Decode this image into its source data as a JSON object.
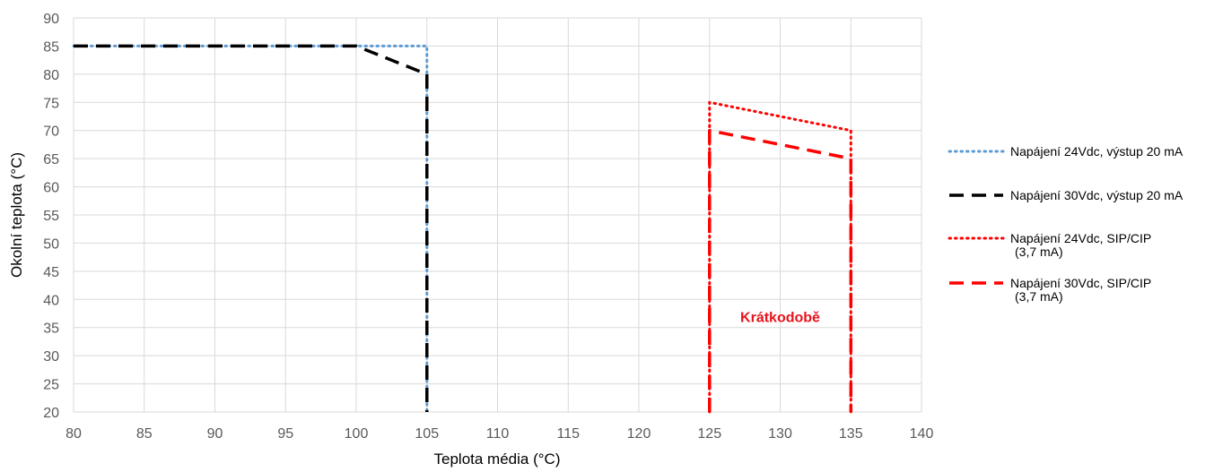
{
  "chart_data": {
    "type": "line",
    "title": "",
    "xlabel": "Teplota média (°C)",
    "ylabel": "Okolní teplota (°C)",
    "xlim": [
      80,
      140
    ],
    "ylim": [
      20,
      90
    ],
    "xticks": [
      80,
      85,
      90,
      95,
      100,
      105,
      110,
      115,
      120,
      125,
      130,
      135,
      140
    ],
    "yticks": [
      20,
      25,
      30,
      35,
      40,
      45,
      50,
      55,
      60,
      65,
      70,
      75,
      80,
      85,
      90
    ],
    "grid": true,
    "legend_position": "right",
    "series": [
      {
        "name": "Napájení 24Vdc, výstup 20 mA",
        "name_lines": [
          "Napájení 24Vdc, výstup 20 mA"
        ],
        "color": "#5b9bd5",
        "style": "dotted",
        "points": [
          [
            80,
            85
          ],
          [
            105,
            85
          ],
          [
            105,
            20
          ]
        ]
      },
      {
        "name": "Napájení 30Vdc, výstup 20 mA",
        "name_lines": [
          "Napájení 30Vdc, výstup 20 mA"
        ],
        "color": "#000000",
        "style": "dashed",
        "points": [
          [
            80,
            85
          ],
          [
            100,
            85
          ],
          [
            105,
            80
          ],
          [
            105,
            20
          ]
        ]
      },
      {
        "name": "Napájení 24Vdc, SIP/CIP (3,7 mA)",
        "name_lines": [
          "Napájení 24Vdc, SIP/CIP",
          "(3,7 mA)"
        ],
        "color": "#ff0000",
        "style": "dotted",
        "points": [
          [
            125,
            20
          ],
          [
            125,
            75
          ],
          [
            135,
            70
          ],
          [
            135,
            20
          ]
        ]
      },
      {
        "name": "Napájení 30Vdc, SIP/CIP (3,7 mA)",
        "name_lines": [
          "Napájení 30Vdc, SIP/CIP",
          "(3,7 mA)"
        ],
        "color": "#ff0000",
        "style": "dashed",
        "points": [
          [
            125,
            20
          ],
          [
            125,
            70
          ],
          [
            135,
            65
          ],
          [
            135,
            20
          ]
        ]
      }
    ],
    "annotations": [
      {
        "text": "Krátkodobě",
        "x": 130,
        "y": 36,
        "color": "#e8141c"
      }
    ]
  }
}
